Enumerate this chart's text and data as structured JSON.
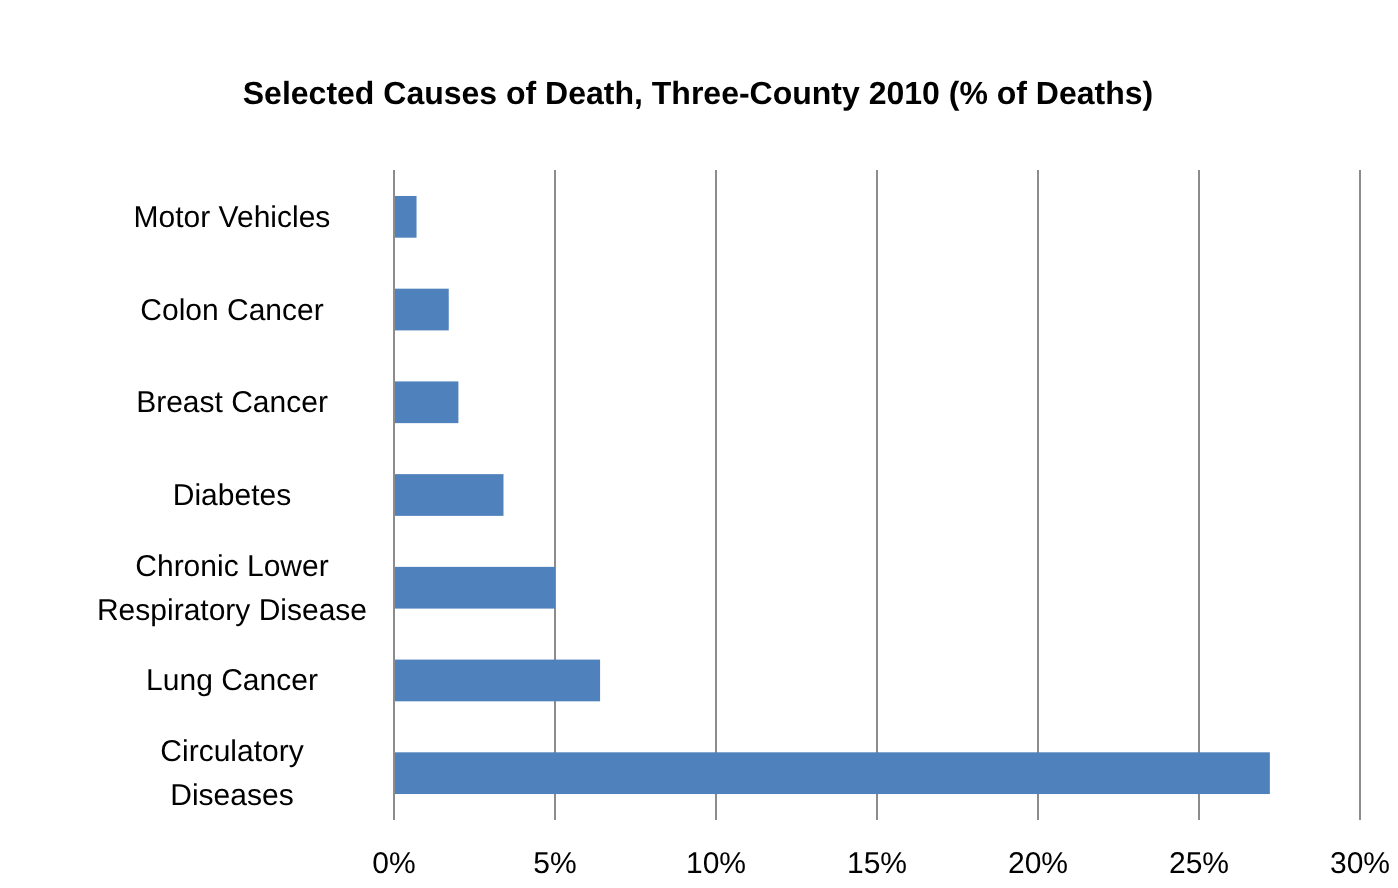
{
  "chart_data": {
    "type": "bar",
    "orientation": "horizontal",
    "title": "Selected Causes of Death, Three-County 2010 (% of Deaths)",
    "categories": [
      "Motor Vehicles",
      "Colon Cancer",
      "Breast Cancer",
      "Diabetes",
      "Chronic Lower Respiratory Disease",
      "Lung Cancer",
      "Circulatory Diseases"
    ],
    "values": [
      0.7,
      1.7,
      2.0,
      3.4,
      5.0,
      6.4,
      27.2
    ],
    "color": "#4f81bd",
    "xlim": [
      0,
      30
    ],
    "xticks": [
      {
        "value": 0,
        "label": "0%"
      },
      {
        "value": 5,
        "label": "5%"
      },
      {
        "value": 10,
        "label": "10%"
      },
      {
        "value": 15,
        "label": "15%"
      },
      {
        "value": 20,
        "label": "20%"
      },
      {
        "value": 25,
        "label": "25%"
      },
      {
        "value": 30,
        "label": "30%"
      }
    ],
    "grid": "x"
  }
}
